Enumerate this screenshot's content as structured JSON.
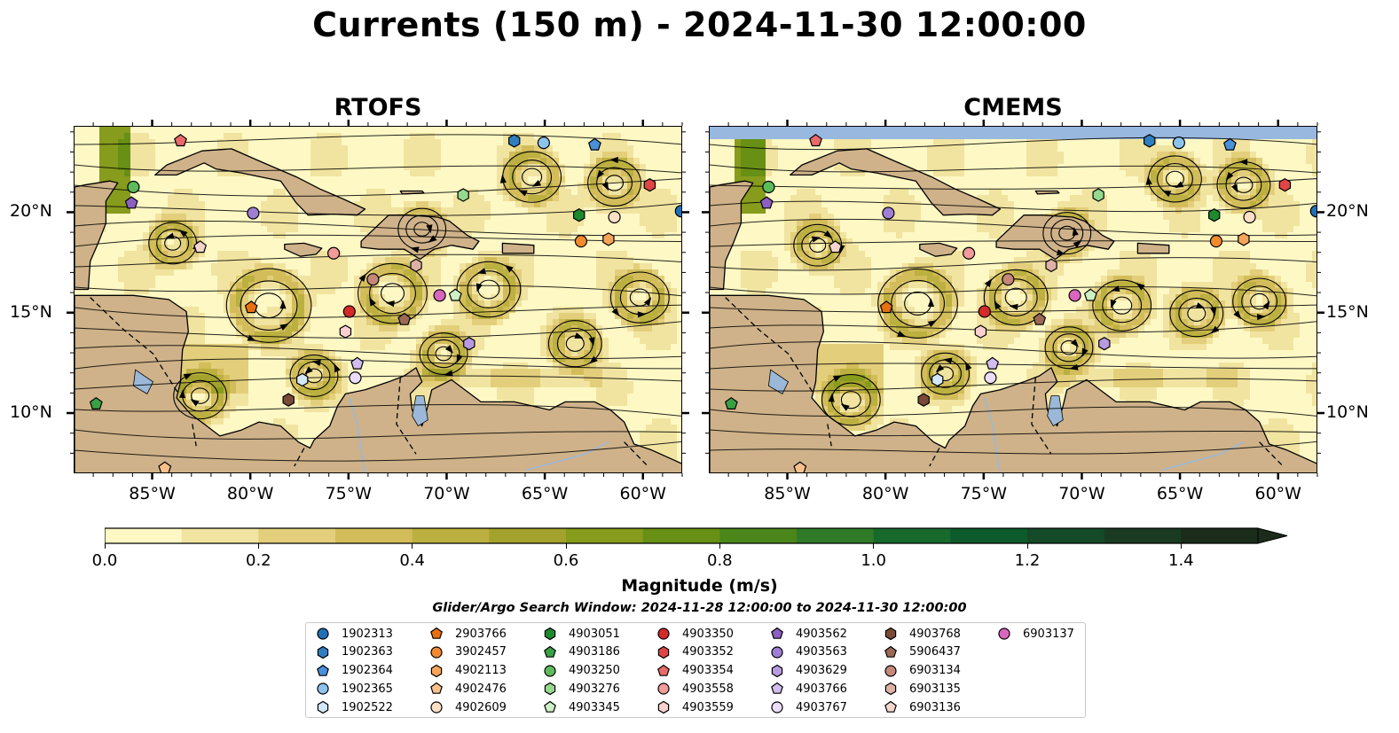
{
  "title": "Currents (150 m) - 2024-11-30 12:00:00",
  "panels": [
    {
      "title": "RTOFS"
    },
    {
      "title": "CMEMS"
    }
  ],
  "lon_ticks": [
    "85°W",
    "80°W",
    "75°W",
    "70°W",
    "65°W",
    "60°W"
  ],
  "lat_ticks": [
    "20°N",
    "15°N",
    "10°N"
  ],
  "map_extent": {
    "lon": [
      -89,
      -58
    ],
    "lat": [
      7,
      24.3
    ]
  },
  "colorbar": {
    "title": "Magnitude (m/s)",
    "ticks": [
      "0.0",
      "0.2",
      "0.4",
      "0.6",
      "0.8",
      "1.0",
      "1.2",
      "1.4"
    ],
    "range": [
      0,
      1.5
    ],
    "extend": "max",
    "colors": [
      "#fdf8c4",
      "#f1e4a0",
      "#e3cf7b",
      "#d3bd5a",
      "#bcb040",
      "#a3a22c",
      "#879c1c",
      "#679014",
      "#4b861b",
      "#2e7a26",
      "#17692c",
      "#0d5a2d",
      "#144a28",
      "#1a3a22",
      "#1b2c1a"
    ]
  },
  "search_window": "Glider/Argo Search Window: 2024-11-28 12:00:00 to 2024-11-30 12:00:00",
  "legend": [
    {
      "id": "1902313",
      "marker": "circle",
      "color": "#1f6fb5"
    },
    {
      "id": "1902363",
      "marker": "hexagon",
      "color": "#2f7fc0"
    },
    {
      "id": "1902364",
      "marker": "pentagon",
      "color": "#4a90d9"
    },
    {
      "id": "1902365",
      "marker": "circle",
      "color": "#8cc3ec"
    },
    {
      "id": "1902522",
      "marker": "hexagon",
      "color": "#d3e8f8"
    },
    {
      "id": "2903766",
      "marker": "pentagon",
      "color": "#e8700f"
    },
    {
      "id": "3902457",
      "marker": "circle",
      "color": "#f28a2e"
    },
    {
      "id": "4902113",
      "marker": "hexagon",
      "color": "#f5a55a"
    },
    {
      "id": "4902476",
      "marker": "pentagon",
      "color": "#f9c08c"
    },
    {
      "id": "4902609",
      "marker": "circle",
      "color": "#fde0c5"
    },
    {
      "id": "4903051",
      "marker": "hexagon",
      "color": "#1e8a2e"
    },
    {
      "id": "4903186",
      "marker": "pentagon",
      "color": "#3aa045"
    },
    {
      "id": "4903250",
      "marker": "circle",
      "color": "#5cbc5c"
    },
    {
      "id": "4903276",
      "marker": "hexagon",
      "color": "#94d98e"
    },
    {
      "id": "4903345",
      "marker": "pentagon",
      "color": "#cdf0c6"
    },
    {
      "id": "4903350",
      "marker": "circle",
      "color": "#d42a2a"
    },
    {
      "id": "4903352",
      "marker": "hexagon",
      "color": "#e04545"
    },
    {
      "id": "4903354",
      "marker": "pentagon",
      "color": "#ea6a6a"
    },
    {
      "id": "4903558",
      "marker": "circle",
      "color": "#f39a9a"
    },
    {
      "id": "4903559",
      "marker": "hexagon",
      "color": "#fbd0cf"
    },
    {
      "id": "4903562",
      "marker": "pentagon",
      "color": "#8c5fc2"
    },
    {
      "id": "4903563",
      "marker": "circle",
      "color": "#a07ed4"
    },
    {
      "id": "4903629",
      "marker": "hexagon",
      "color": "#b89ae0"
    },
    {
      "id": "4903766",
      "marker": "pentagon",
      "color": "#d2bdf0"
    },
    {
      "id": "4903767",
      "marker": "circle",
      "color": "#eadcfa"
    },
    {
      "id": "4903768",
      "marker": "hexagon",
      "color": "#7a4a38"
    },
    {
      "id": "5906437",
      "marker": "pentagon",
      "color": "#9a6a55"
    },
    {
      "id": "6903134",
      "marker": "circle",
      "color": "#c4877a"
    },
    {
      "id": "6903135",
      "marker": "hexagon",
      "color": "#ddb1a5"
    },
    {
      "id": "6903136",
      "marker": "pentagon",
      "color": "#f4d6cd"
    },
    {
      "id": "6903137",
      "marker": "circle",
      "color": "#d966be"
    }
  ],
  "observations": [
    {
      "id": "1902313",
      "lon": -58.1,
      "lat": 20.1
    },
    {
      "id": "1902363",
      "lon": -66.6,
      "lat": 23.6
    },
    {
      "id": "1902364",
      "lon": -62.5,
      "lat": 23.4
    },
    {
      "id": "1902365",
      "lon": -65.1,
      "lat": 23.5
    },
    {
      "id": "1902522",
      "lon": -77.4,
      "lat": 11.7
    },
    {
      "id": "2903766",
      "lon": -80.0,
      "lat": 15.3
    },
    {
      "id": "3902457",
      "lon": -63.2,
      "lat": 18.6
    },
    {
      "id": "4902113",
      "lon": -61.8,
      "lat": 18.7
    },
    {
      "id": "4902476",
      "lon": -84.4,
      "lat": 7.3
    },
    {
      "id": "4902609",
      "lon": -61.5,
      "lat": 19.8
    },
    {
      "id": "4903051",
      "lon": -63.3,
      "lat": 19.9
    },
    {
      "id": "4903186",
      "lon": -87.9,
      "lat": 10.5
    },
    {
      "id": "4903250",
      "lon": -86.0,
      "lat": 21.3
    },
    {
      "id": "4903276",
      "lon": -69.2,
      "lat": 20.9
    },
    {
      "id": "4903345",
      "lon": -69.6,
      "lat": 15.9
    },
    {
      "id": "4903350",
      "lon": -75.0,
      "lat": 15.1
    },
    {
      "id": "4903352",
      "lon": -59.7,
      "lat": 21.4
    },
    {
      "id": "4903354",
      "lon": -83.6,
      "lat": 23.6
    },
    {
      "id": "4903558",
      "lon": -75.8,
      "lat": 18.0
    },
    {
      "id": "4903559",
      "lon": -75.2,
      "lat": 14.1
    },
    {
      "id": "4903562",
      "lon": -86.1,
      "lat": 20.5
    },
    {
      "id": "4903563",
      "lon": -79.9,
      "lat": 20.0
    },
    {
      "id": "4903629",
      "lon": -68.9,
      "lat": 13.5
    },
    {
      "id": "4903766",
      "lon": -74.6,
      "lat": 12.5
    },
    {
      "id": "4903767",
      "lon": -74.7,
      "lat": 11.8
    },
    {
      "id": "4903768",
      "lon": -78.1,
      "lat": 10.7
    },
    {
      "id": "5906437",
      "lon": -72.2,
      "lat": 14.7
    },
    {
      "id": "6903134",
      "lon": -73.8,
      "lat": 16.7
    },
    {
      "id": "6903135",
      "lon": -71.6,
      "lat": 17.4
    },
    {
      "id": "6903136",
      "lon": -82.6,
      "lat": 18.3
    },
    {
      "id": "6903137",
      "lon": -70.4,
      "lat": 15.9
    }
  ],
  "colors": {
    "land": "#cfb289",
    "ocean": "#98b8e0",
    "coast": "#000000",
    "river": "#9cb8d8",
    "streamline": "#000000"
  }
}
